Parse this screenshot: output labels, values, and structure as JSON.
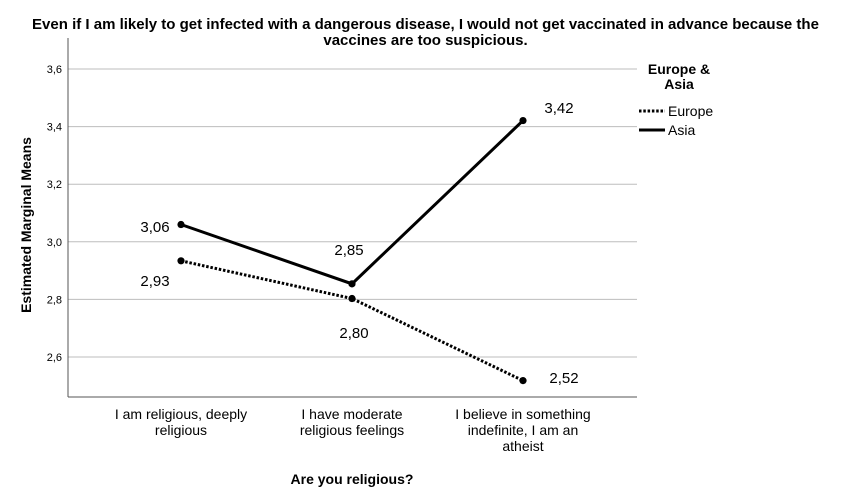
{
  "chart_data": {
    "type": "line",
    "title_lines": [
      "Even if I am likely to get infected with a dangerous disease, I would not get vaccinated in advance because the",
      "vaccines are too suspicious."
    ],
    "xlabel": "Are you religious?",
    "ylabel": "Estimated Marginal Means",
    "categories": [
      [
        "I am religious, deeply",
        "religious"
      ],
      [
        "I have moderate",
        "religious feelings"
      ],
      [
        "I believe in something",
        "indefinite, I am an",
        "atheist"
      ]
    ],
    "ylim": [
      2.5,
      3.6
    ],
    "yticks": [
      "2,6",
      "2,8",
      "3,0",
      "3,2",
      "3,4",
      "3,6"
    ],
    "ytick_values": [
      2.6,
      2.8,
      3.0,
      3.2,
      3.4,
      3.6
    ],
    "grid": true,
    "legend": {
      "title_lines": [
        "Europe &",
        "Asia"
      ],
      "placement": "top-right"
    },
    "series": [
      {
        "name": "Europe",
        "values": [
          2.934,
          2.803,
          2.518
        ],
        "labels": [
          "2,93",
          "2,80",
          "2,52"
        ],
        "style": "dotted",
        "color": "#000000"
      },
      {
        "name": "Asia",
        "values": [
          3.06,
          2.854,
          3.421
        ],
        "labels": [
          "3,06",
          "2,85",
          "3,42"
        ],
        "style": "solid",
        "color": "#000000"
      }
    ],
    "gridline_color": "#bdbdbd",
    "axis_color": "#555555"
  }
}
